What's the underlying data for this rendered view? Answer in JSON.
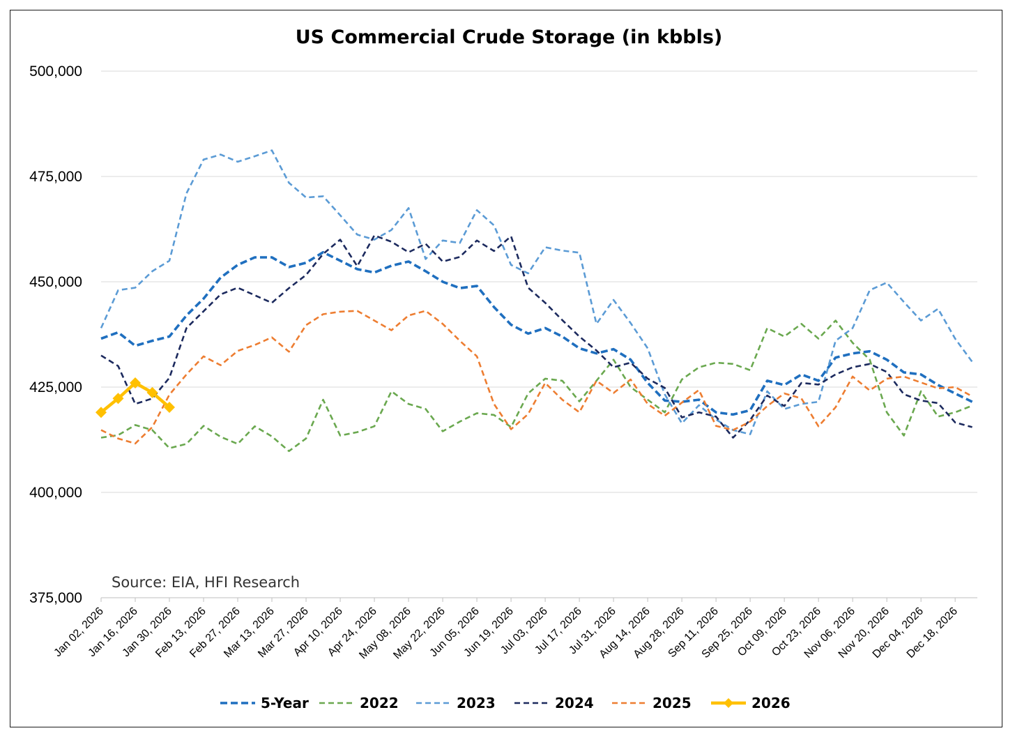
{
  "chart_data": {
    "type": "line",
    "title": "US Commercial Crude Storage (in kbbls)",
    "xlabel": "",
    "ylabel": "",
    "ylim": [
      375000,
      500000
    ],
    "yticks": [
      375000,
      400000,
      425000,
      450000,
      475000,
      500000
    ],
    "ytick_labels": [
      "375,000",
      "400,000",
      "425,000",
      "450,000",
      "475,000",
      "500,000"
    ],
    "grid": true,
    "legend_position": "bottom",
    "x_tick_labels": [
      "Jan 02, 2026",
      "Jan 16, 2026",
      "Jan 30, 2026",
      "Feb 13, 2026",
      "Feb 27, 2026",
      "Mar 13, 2026",
      "Mar 27, 2026",
      "Apr 10, 2026",
      "Apr 24, 2026",
      "May 08, 2026",
      "May 22, 2026",
      "Jun 05, 2026",
      "Jun 19, 2026",
      "Jul 03, 2026",
      "Jul 17, 2026",
      "Jul 31, 2026",
      "Aug 14, 2026",
      "Aug 28, 2026",
      "Sep 11, 2026",
      "Sep 25, 2026",
      "Oct 09, 2026",
      "Oct 23, 2026",
      "Nov 06, 2026",
      "Nov 20, 2026",
      "Dec 04, 2026",
      "Dec 18, 2026"
    ],
    "n_weeks": 52,
    "annotation": "Source: EIA, HFI Research",
    "series": [
      {
        "name": "5-Year",
        "color": "#1f6fbf",
        "style": "dashed-thick",
        "values": [
          436500,
          438000,
          434800,
          436000,
          437000,
          442000,
          446000,
          451000,
          454000,
          455800,
          455800,
          453500,
          454500,
          457000,
          455000,
          453000,
          452200,
          453800,
          454800,
          452500,
          450000,
          448500,
          449000,
          444000,
          439800,
          437700,
          439000,
          437000,
          434200,
          433000,
          434000,
          431500,
          426000,
          421800,
          421500,
          422000,
          419000,
          418500,
          419500,
          426500,
          425500,
          428000,
          426500,
          432000,
          433000,
          433500,
          431500,
          428500,
          428000,
          425500,
          423500,
          421500
        ]
      },
      {
        "name": "2022",
        "color": "#6aa84f",
        "style": "dashed",
        "values": [
          413000,
          413600,
          416000,
          414800,
          410500,
          411500,
          415800,
          413200,
          411500,
          415700,
          413300,
          409800,
          412800,
          422000,
          413500,
          414300,
          415700,
          424000,
          421000,
          419800,
          414500,
          416800,
          418800,
          418400,
          415500,
          423500,
          427000,
          426500,
          421600,
          426500,
          431500,
          425000,
          422000,
          419000,
          426800,
          429700,
          430800,
          430500,
          429000,
          439000,
          437000,
          440000,
          436500,
          440800,
          435500,
          431500,
          419000,
          413500,
          424000,
          418000,
          419000,
          420600
        ]
      },
      {
        "name": "2023",
        "color": "#5b9bd5",
        "style": "dashed",
        "values": [
          439000,
          448000,
          448600,
          452500,
          455000,
          471000,
          479000,
          480200,
          478500,
          479800,
          481200,
          473500,
          470000,
          470300,
          465800,
          461200,
          460000,
          462300,
          467500,
          455400,
          459800,
          459200,
          467000,
          463400,
          454000,
          452000,
          458200,
          457400,
          456900,
          440000,
          445700,
          440200,
          434200,
          423300,
          416400,
          420700,
          417300,
          414800,
          413800,
          424000,
          419800,
          421000,
          421500,
          436000,
          439000,
          448000,
          449800,
          445200,
          440800,
          443600,
          436500,
          431000
        ]
      },
      {
        "name": "2024",
        "color": "#1c2a5e",
        "style": "dashed",
        "values": [
          432500,
          430000,
          421000,
          422300,
          427200,
          439000,
          443000,
          447000,
          448600,
          446800,
          445000,
          448500,
          451600,
          456600,
          460000,
          453700,
          461000,
          459500,
          457000,
          459000,
          454800,
          455900,
          459800,
          457300,
          460800,
          448600,
          445000,
          440900,
          437000,
          433700,
          429700,
          430800,
          427000,
          424800,
          417800,
          419000,
          418000,
          413000,
          417200,
          423000,
          420500,
          426000,
          425600,
          428000,
          429700,
          430500,
          428600,
          423300,
          421800,
          421200,
          416600,
          415500
        ]
      },
      {
        "name": "2025",
        "color": "#ed7d31",
        "style": "dashed",
        "values": [
          414800,
          412800,
          411600,
          415500,
          423200,
          428000,
          432300,
          430200,
          433600,
          435000,
          436800,
          433400,
          439700,
          442300,
          442900,
          443100,
          440800,
          438500,
          442000,
          443100,
          440000,
          436000,
          432300,
          421000,
          415000,
          418600,
          426000,
          422000,
          419000,
          426500,
          423600,
          426800,
          421000,
          418200,
          421300,
          424300,
          415800,
          414800,
          416800,
          420500,
          423500,
          422300,
          415700,
          420200,
          427500,
          424200,
          427000,
          427500,
          426100,
          424700,
          425000,
          422800
        ]
      },
      {
        "name": "2026",
        "color": "#ffc000",
        "style": "solid-markers",
        "values": [
          419000,
          422300,
          426000,
          423700,
          420200
        ]
      }
    ]
  }
}
